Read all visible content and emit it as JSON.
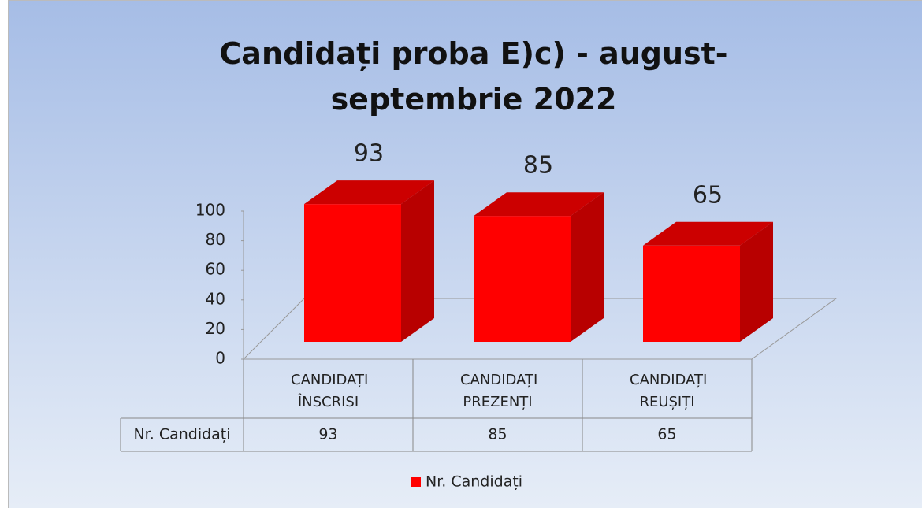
{
  "chart_data": {
    "type": "bar3d",
    "title": "Candidați proba E)c) - august-septembrie 2022",
    "categories": [
      "CANDIDAȚI ÎNSCRISI",
      "CANDIDAȚI PREZENȚI",
      "CANDIDAȚI REUȘIȚI"
    ],
    "series": [
      {
        "name": "Nr. Candidați",
        "color": "#ff0000",
        "values": [
          93,
          85,
          65
        ]
      }
    ],
    "ylim": [
      0,
      100
    ],
    "yticks": [
      0,
      20,
      40,
      60,
      80,
      100
    ],
    "data_labels": true,
    "data_table": true,
    "legend": "bottom"
  }
}
